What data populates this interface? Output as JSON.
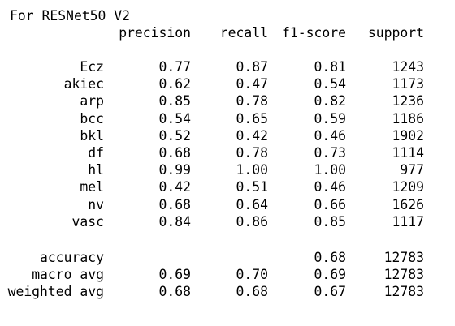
{
  "title": "For RESNet50 V2",
  "headers": {
    "precision": "precision",
    "recall": "recall",
    "f1": "f1-score",
    "support": "support"
  },
  "rows": [
    {
      "label": "Ecz",
      "precision": "0.77",
      "recall": "0.87",
      "f1": "0.81",
      "support": "1243"
    },
    {
      "label": "akiec",
      "precision": "0.62",
      "recall": "0.47",
      "f1": "0.54",
      "support": "1173"
    },
    {
      "label": "arp",
      "precision": "0.85",
      "recall": "0.78",
      "f1": "0.82",
      "support": "1236"
    },
    {
      "label": "bcc",
      "precision": "0.54",
      "recall": "0.65",
      "f1": "0.59",
      "support": "1186"
    },
    {
      "label": "bkl",
      "precision": "0.52",
      "recall": "0.42",
      "f1": "0.46",
      "support": "1902"
    },
    {
      "label": "df",
      "precision": "0.68",
      "recall": "0.78",
      "f1": "0.73",
      "support": "1114"
    },
    {
      "label": "hl",
      "precision": "0.99",
      "recall": "1.00",
      "f1": "1.00",
      "support": "977"
    },
    {
      "label": "mel",
      "precision": "0.42",
      "recall": "0.51",
      "f1": "0.46",
      "support": "1209"
    },
    {
      "label": "nv",
      "precision": "0.68",
      "recall": "0.64",
      "f1": "0.66",
      "support": "1626"
    },
    {
      "label": "vasc",
      "precision": "0.84",
      "recall": "0.86",
      "f1": "0.85",
      "support": "1117"
    }
  ],
  "summary": [
    {
      "label": "accuracy",
      "precision": "",
      "recall": "",
      "f1": "0.68",
      "support": "12783"
    },
    {
      "label": "macro avg",
      "precision": "0.69",
      "recall": "0.70",
      "f1": "0.69",
      "support": "12783"
    },
    {
      "label": "weighted avg",
      "precision": "0.68",
      "recall": "0.68",
      "f1": "0.67",
      "support": "12783"
    }
  ]
}
